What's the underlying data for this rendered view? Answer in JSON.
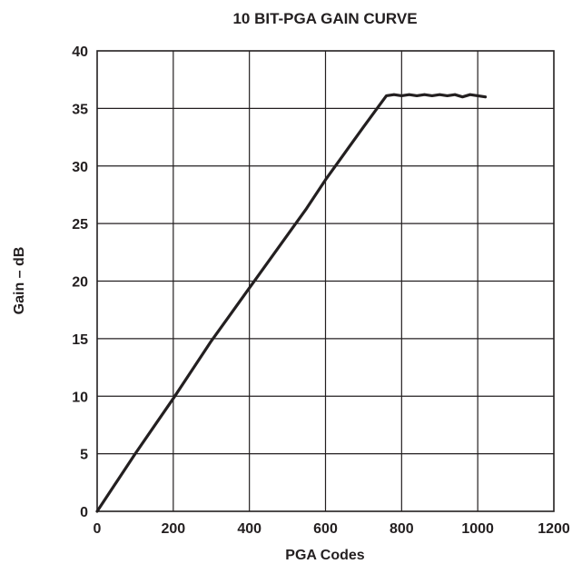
{
  "chart_data": {
    "type": "line",
    "title": "10 BIT-PGA GAIN CURVE",
    "xlabel": "PGA Codes",
    "ylabel": "Gain – dB",
    "xlim": [
      0,
      1200
    ],
    "ylim": [
      0,
      40
    ],
    "x_ticks": [
      0,
      200,
      400,
      600,
      800,
      1000,
      1200
    ],
    "y_ticks": [
      0,
      5,
      10,
      15,
      20,
      25,
      30,
      35,
      40
    ],
    "grid": true,
    "legend": "none",
    "line_color": "#231f20",
    "series": [
      {
        "x": [
          0,
          50,
          100,
          150,
          200,
          250,
          300,
          350,
          400,
          450,
          500,
          550,
          600,
          650,
          700,
          740,
          760,
          780,
          800,
          820,
          840,
          860,
          880,
          900,
          920,
          940,
          960,
          980,
          1000,
          1020
        ],
        "y": [
          0,
          2.5,
          5.0,
          7.4,
          9.8,
          12.3,
          14.8,
          17.1,
          19.4,
          21.7,
          24.0,
          26.3,
          28.8,
          31.1,
          33.4,
          35.2,
          36.1,
          36.2,
          36.1,
          36.2,
          36.1,
          36.2,
          36.1,
          36.2,
          36.1,
          36.2,
          36.0,
          36.2,
          36.1,
          36.0
        ]
      }
    ]
  }
}
